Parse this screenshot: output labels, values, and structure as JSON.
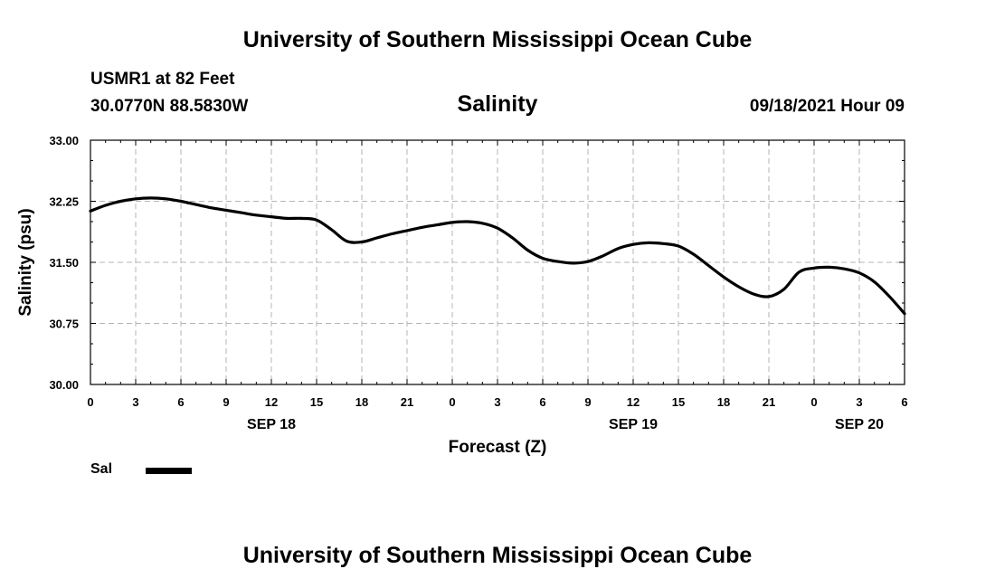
{
  "header": {
    "title": "University of Southern Mississippi Ocean Cube",
    "station": "USMR1 at 82 Feet",
    "coords": "30.0770N  88.5830W",
    "datetime": "09/18/2021 Hour 09"
  },
  "footer": {
    "title": "University of Southern Mississippi Ocean Cube"
  },
  "legend": {
    "label": "Sal",
    "color": "#000000"
  },
  "chart_data": {
    "type": "line",
    "title": "Salinity",
    "xlabel": "Forecast (Z)",
    "ylabel": "Salinity (psu)",
    "ylim": [
      30.0,
      33.0
    ],
    "yticks": [
      "33.00",
      "32.25",
      "31.50",
      "30.75",
      "30.00"
    ],
    "xlim": [
      0,
      54
    ],
    "xtick_labels": [
      "0",
      "3",
      "6",
      "9",
      "12",
      "15",
      "18",
      "21",
      "0",
      "3",
      "6",
      "9",
      "12",
      "15",
      "18",
      "21",
      "0",
      "3",
      "6"
    ],
    "date_labels": [
      {
        "label": "SEP 18",
        "hour": 12
      },
      {
        "label": "SEP 19",
        "hour": 36
      },
      {
        "label": "SEP 20",
        "hour": 51
      }
    ],
    "grid": true,
    "series": [
      {
        "name": "Sal",
        "color": "#000000",
        "x": [
          0,
          1,
          2,
          3,
          4,
          5,
          6,
          7,
          8,
          9,
          10,
          11,
          12,
          13,
          14,
          15,
          16,
          17,
          18,
          19,
          20,
          21,
          22,
          23,
          24,
          25,
          26,
          27,
          28,
          29,
          30,
          31,
          32,
          33,
          34,
          35,
          36,
          37,
          38,
          39,
          40,
          41,
          42,
          43,
          44,
          45,
          46,
          47,
          48,
          49,
          50,
          51,
          52,
          53,
          54
        ],
        "values": [
          32.13,
          32.2,
          32.25,
          32.28,
          32.29,
          32.28,
          32.25,
          32.21,
          32.17,
          32.14,
          32.11,
          32.08,
          32.06,
          32.04,
          32.04,
          32.02,
          31.9,
          31.76,
          31.75,
          31.8,
          31.85,
          31.89,
          31.93,
          31.96,
          31.99,
          32.0,
          31.98,
          31.92,
          31.8,
          31.65,
          31.55,
          31.51,
          31.49,
          31.51,
          31.58,
          31.67,
          31.72,
          31.74,
          31.73,
          31.7,
          31.6,
          31.46,
          31.32,
          31.2,
          31.11,
          31.08,
          31.17,
          31.38,
          31.43,
          31.44,
          31.42,
          31.37,
          31.26,
          31.08,
          30.87
        ]
      }
    ]
  }
}
